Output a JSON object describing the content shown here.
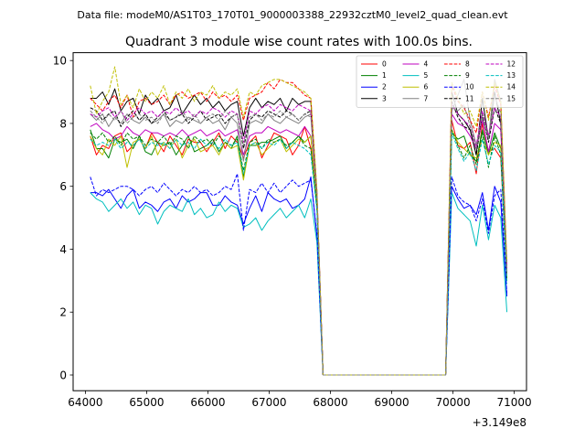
{
  "chart_data": {
    "type": "line",
    "suptitle": "Data file: modeM0/AS1T03_170T01_9000003388_22932cztM0_level2_quad_clean.evt",
    "title": "Quadrant 3 module wise count rates with 100.0s bins.",
    "xlabel": "",
    "ylabel": "",
    "x_offset_label": "+3.149e8",
    "xlim": [
      63800,
      71200
    ],
    "ylim": [
      -0.5,
      10.25
    ],
    "xticks": [
      64000,
      65000,
      66000,
      67000,
      68000,
      69000,
      70000,
      71000
    ],
    "xtick_labels": [
      "64000",
      "65000",
      "66000",
      "67000",
      "68000",
      "69000",
      "70000",
      "71000"
    ],
    "yticks": [
      0,
      2,
      4,
      6,
      8,
      10
    ],
    "ytick_labels": [
      "0",
      "2",
      "4",
      "6",
      "8",
      "10"
    ],
    "grid": false,
    "legend_position": "top-right",
    "legend_columns": 4,
    "x": [
      64080,
      64180,
      64280,
      64380,
      64480,
      64580,
      64680,
      64780,
      64880,
      64980,
      65080,
      65180,
      65280,
      65380,
      65480,
      65580,
      65680,
      65780,
      65880,
      65980,
      66080,
      66180,
      66280,
      66380,
      66480,
      66580,
      66680,
      66780,
      66880,
      66980,
      67080,
      67180,
      67280,
      67380,
      67480,
      67580,
      67680,
      67780,
      67880,
      67980,
      68080,
      68180,
      68280,
      68380,
      68480,
      68580,
      68680,
      68780,
      68880,
      68980,
      69080,
      69180,
      69280,
      69380,
      69480,
      69580,
      69680,
      69780,
      69880,
      69980,
      70080,
      70180,
      70280,
      70380,
      70480,
      70580,
      70680,
      70780,
      70880
    ],
    "series": [
      {
        "name": "0",
        "color": "#ff0000",
        "dash": "solid",
        "values": [
          7.6,
          7.0,
          7.3,
          7.2,
          7.6,
          7.7,
          7.1,
          7.3,
          7.5,
          7.2,
          7.7,
          7.4,
          7.1,
          7.6,
          7.3,
          7.0,
          7.5,
          7.4,
          7.4,
          7.1,
          7.4,
          7.7,
          7.2,
          7.6,
          7.4,
          6.9,
          7.4,
          7.6,
          6.9,
          7.3,
          7.7,
          7.6,
          7.5,
          7.0,
          7.3,
          7.9,
          7.2,
          5.5,
          0,
          0,
          0,
          0,
          0,
          0,
          0,
          0,
          0,
          0,
          0,
          0,
          0,
          0,
          0,
          0,
          0,
          0,
          0,
          0,
          0,
          8.1,
          7.3,
          7.2,
          7.4,
          6.4,
          8.0,
          7.1,
          7.2,
          6.9,
          3.0
        ]
      },
      {
        "name": "1",
        "color": "#008000",
        "dash": "solid",
        "values": [
          7.8,
          7.2,
          7.2,
          6.9,
          7.5,
          7.4,
          7.5,
          7.2,
          7.6,
          7.1,
          7.0,
          7.4,
          7.3,
          7.4,
          7.0,
          7.3,
          7.6,
          7.1,
          7.2,
          7.3,
          7.5,
          7.1,
          7.4,
          7.2,
          7.6,
          6.3,
          7.3,
          7.3,
          7.4,
          7.4,
          7.5,
          7.6,
          7.2,
          7.4,
          7.6,
          7.4,
          7.6,
          5.4,
          0,
          0,
          0,
          0,
          0,
          0,
          0,
          0,
          0,
          0,
          0,
          0,
          0,
          0,
          0,
          0,
          0,
          0,
          0,
          0,
          0,
          7.7,
          7.5,
          7.6,
          7.0,
          6.8,
          7.8,
          7.0,
          7.7,
          7.2,
          3.1
        ]
      },
      {
        "name": "2",
        "color": "#0000ff",
        "dash": "solid",
        "values": [
          5.8,
          5.8,
          5.7,
          5.9,
          5.6,
          5.3,
          5.7,
          5.9,
          5.3,
          5.5,
          5.4,
          5.2,
          5.5,
          5.6,
          5.3,
          5.7,
          5.5,
          5.6,
          5.8,
          5.8,
          5.4,
          5.4,
          5.7,
          5.5,
          5.4,
          4.8,
          5.3,
          5.7,
          5.2,
          5.8,
          5.6,
          5.5,
          5.6,
          5.3,
          5.4,
          5.6,
          6.3,
          4.4,
          0,
          0,
          0,
          0,
          0,
          0,
          0,
          0,
          0,
          0,
          0,
          0,
          0,
          0,
          0,
          0,
          0,
          0,
          0,
          0,
          0,
          6.0,
          5.6,
          5.3,
          5.4,
          5.1,
          5.8,
          4.6,
          6.0,
          5.5,
          2.5
        ]
      },
      {
        "name": "3",
        "color": "#000000",
        "dash": "solid",
        "values": [
          8.8,
          8.8,
          9.0,
          8.6,
          9.1,
          8.4,
          8.7,
          8.8,
          8.3,
          8.9,
          8.6,
          8.8,
          8.4,
          8.5,
          8.9,
          8.3,
          8.6,
          8.9,
          8.6,
          8.8,
          8.5,
          8.7,
          8.4,
          8.6,
          8.7,
          7.6,
          8.5,
          8.8,
          8.5,
          8.7,
          8.6,
          8.8,
          8.4,
          8.8,
          8.6,
          8.7,
          8.7,
          5.7,
          0,
          0,
          0,
          0,
          0,
          0,
          0,
          0,
          0,
          0,
          0,
          0,
          0,
          0,
          0,
          0,
          0,
          0,
          0,
          0,
          0,
          9.0,
          8.3,
          8.1,
          7.8,
          7.0,
          8.8,
          7.5,
          9.0,
          8.0,
          3.4
        ]
      },
      {
        "name": "4",
        "color": "#bf00bf",
        "dash": "solid",
        "values": [
          7.9,
          8.0,
          7.8,
          7.7,
          7.5,
          7.6,
          7.9,
          7.7,
          7.6,
          7.8,
          7.7,
          7.7,
          7.6,
          7.7,
          7.6,
          7.8,
          7.6,
          7.7,
          7.8,
          7.6,
          7.7,
          7.8,
          7.6,
          7.7,
          7.8,
          7.0,
          7.6,
          7.7,
          7.7,
          7.9,
          7.8,
          7.7,
          7.8,
          7.7,
          7.6,
          7.9,
          7.6,
          5.6,
          0,
          0,
          0,
          0,
          0,
          0,
          0,
          0,
          0,
          0,
          0,
          0,
          0,
          0,
          0,
          0,
          0,
          0,
          0,
          0,
          0,
          8.3,
          8.0,
          7.9,
          7.6,
          7.2,
          8.1,
          7.1,
          8.0,
          7.8,
          3.2
        ]
      },
      {
        "name": "5",
        "color": "#00bfbf",
        "dash": "solid",
        "values": [
          5.8,
          5.6,
          5.5,
          5.2,
          5.4,
          5.6,
          5.3,
          5.5,
          5.1,
          5.4,
          5.3,
          4.8,
          5.2,
          5.4,
          5.3,
          5.2,
          5.6,
          5.1,
          5.3,
          5.0,
          5.1,
          5.5,
          5.2,
          5.4,
          5.3,
          4.7,
          4.8,
          5.0,
          4.6,
          4.9,
          5.1,
          5.3,
          5.0,
          5.2,
          5.4,
          5.0,
          5.6,
          4.2,
          0,
          0,
          0,
          0,
          0,
          0,
          0,
          0,
          0,
          0,
          0,
          0,
          0,
          0,
          0,
          0,
          0,
          0,
          0,
          0,
          0,
          5.8,
          5.3,
          5.1,
          4.9,
          4.1,
          5.4,
          4.3,
          5.4,
          5.0,
          2.0
        ]
      },
      {
        "name": "6",
        "color": "#bfbf00",
        "dash": "solid",
        "values": [
          7.6,
          7.2,
          7.0,
          7.5,
          7.3,
          7.6,
          6.6,
          7.4,
          7.5,
          7.2,
          7.6,
          7.0,
          7.4,
          7.2,
          7.5,
          6.9,
          7.3,
          7.5,
          7.1,
          7.2,
          7.3,
          7.0,
          7.4,
          7.2,
          7.3,
          6.2,
          7.3,
          7.4,
          7.0,
          7.2,
          7.4,
          7.5,
          7.1,
          7.3,
          7.5,
          7.4,
          7.6,
          5.3,
          0,
          0,
          0,
          0,
          0,
          0,
          0,
          0,
          0,
          0,
          0,
          0,
          0,
          0,
          0,
          0,
          0,
          0,
          0,
          0,
          0,
          7.8,
          7.4,
          7.2,
          7.0,
          6.9,
          7.5,
          7.0,
          7.4,
          7.3,
          3.0
        ]
      },
      {
        "name": "7",
        "color": "#808080",
        "dash": "solid",
        "values": [
          8.3,
          8.1,
          8.3,
          7.9,
          8.2,
          8.0,
          8.3,
          8.1,
          8.0,
          8.2,
          8.0,
          8.1,
          8.3,
          7.9,
          8.1,
          8.0,
          8.2,
          8.1,
          8.0,
          8.2,
          8.0,
          8.1,
          7.8,
          8.2,
          8.0,
          6.8,
          8.0,
          8.1,
          8.0,
          8.3,
          8.1,
          8.0,
          8.2,
          8.1,
          8.0,
          8.2,
          8.3,
          5.6,
          0,
          0,
          0,
          0,
          0,
          0,
          0,
          0,
          0,
          0,
          0,
          0,
          0,
          0,
          0,
          0,
          0,
          0,
          0,
          0,
          0,
          8.4,
          8.9,
          9.4,
          8.1,
          7.3,
          8.2,
          7.5,
          9.4,
          8.7,
          3.3
        ]
      },
      {
        "name": "8",
        "color": "#ff0000",
        "dash": "dashed",
        "values": [
          8.8,
          8.6,
          8.4,
          8.7,
          8.9,
          8.5,
          8.9,
          8.2,
          8.7,
          8.8,
          8.6,
          8.7,
          8.9,
          8.6,
          8.9,
          9.0,
          8.8,
          8.9,
          9.0,
          8.7,
          9.0,
          8.8,
          8.9,
          8.7,
          8.9,
          8.1,
          8.8,
          8.9,
          9.0,
          9.3,
          9.1,
          9.4,
          9.3,
          9.3,
          9.1,
          8.9,
          8.8,
          5.8,
          0,
          0,
          0,
          0,
          0,
          0,
          0,
          0,
          0,
          0,
          0,
          0,
          0,
          0,
          0,
          0,
          0,
          0,
          0,
          0,
          0,
          9.2,
          8.7,
          8.5,
          8.1,
          7.7,
          9.0,
          8.2,
          9.2,
          8.6,
          3.5
        ]
      },
      {
        "name": "9",
        "color": "#008000",
        "dash": "dashed",
        "values": [
          7.7,
          7.5,
          7.7,
          7.4,
          7.6,
          7.3,
          7.7,
          7.5,
          7.6,
          7.3,
          7.5,
          7.4,
          7.6,
          7.3,
          7.6,
          7.5,
          7.2,
          7.6,
          7.4,
          7.5,
          7.3,
          7.6,
          7.4,
          7.3,
          7.5,
          6.5,
          7.4,
          7.5,
          7.2,
          7.5,
          7.4,
          7.5,
          7.3,
          7.4,
          7.6,
          7.3,
          7.2,
          5.3,
          0,
          0,
          0,
          0,
          0,
          0,
          0,
          0,
          0,
          0,
          0,
          0,
          0,
          0,
          0,
          0,
          0,
          0,
          0,
          0,
          0,
          7.8,
          7.3,
          6.9,
          7.3,
          6.7,
          7.7,
          6.6,
          7.6,
          7.0,
          3.0
        ]
      },
      {
        "name": "10",
        "color": "#0000ff",
        "dash": "dashed",
        "values": [
          6.3,
          5.7,
          5.9,
          5.8,
          5.9,
          6.0,
          6.0,
          5.9,
          5.7,
          5.9,
          6.0,
          5.8,
          6.1,
          5.9,
          5.7,
          5.9,
          5.8,
          6.0,
          5.8,
          5.9,
          5.7,
          5.8,
          6.0,
          5.9,
          6.4,
          4.6,
          5.9,
          5.8,
          6.1,
          5.8,
          6.1,
          5.8,
          6.0,
          6.2,
          6.0,
          6.1,
          6.2,
          4.5,
          0,
          0,
          0,
          0,
          0,
          0,
          0,
          0,
          0,
          0,
          0,
          0,
          0,
          0,
          0,
          0,
          0,
          0,
          0,
          0,
          0,
          6.3,
          5.7,
          5.5,
          5.4,
          4.9,
          5.6,
          4.5,
          5.7,
          5.9,
          2.6
        ]
      },
      {
        "name": "11",
        "color": "#000000",
        "dash": "dashed",
        "values": [
          8.5,
          8.4,
          8.1,
          8.3,
          8.4,
          7.9,
          8.2,
          8.4,
          8.1,
          8.3,
          8.0,
          8.2,
          8.4,
          8.1,
          8.2,
          8.3,
          8.0,
          8.2,
          8.4,
          8.1,
          8.2,
          8.3,
          8.0,
          8.2,
          8.3,
          7.2,
          8.1,
          8.3,
          8.2,
          8.4,
          8.3,
          8.2,
          8.4,
          8.3,
          8.1,
          8.3,
          8.4,
          5.7,
          0,
          0,
          0,
          0,
          0,
          0,
          0,
          0,
          0,
          0,
          0,
          0,
          0,
          0,
          0,
          0,
          0,
          0,
          0,
          0,
          0,
          8.7,
          8.2,
          7.9,
          7.8,
          7.0,
          8.3,
          7.4,
          8.5,
          8.0,
          3.3
        ]
      },
      {
        "name": "12",
        "color": "#bf00bf",
        "dash": "dashed",
        "values": [
          8.3,
          8.2,
          8.4,
          8.5,
          8.2,
          8.4,
          8.1,
          8.3,
          8.5,
          8.3,
          8.4,
          8.2,
          8.4,
          8.3,
          8.5,
          8.3,
          8.4,
          8.2,
          8.4,
          8.3,
          8.5,
          8.4,
          8.2,
          8.4,
          8.3,
          7.4,
          8.4,
          8.3,
          8.5,
          8.6,
          8.4,
          8.6,
          8.5,
          8.4,
          8.6,
          8.5,
          8.4,
          5.8,
          0,
          0,
          0,
          0,
          0,
          0,
          0,
          0,
          0,
          0,
          0,
          0,
          0,
          0,
          0,
          0,
          0,
          0,
          0,
          0,
          0,
          8.6,
          8.3,
          8.1,
          7.9,
          7.3,
          8.4,
          7.6,
          8.5,
          8.2,
          3.4
        ]
      },
      {
        "name": "13",
        "color": "#00bfbf",
        "dash": "dashed",
        "values": [
          7.5,
          7.3,
          7.4,
          7.3,
          7.5,
          7.2,
          7.4,
          7.3,
          7.5,
          7.2,
          7.4,
          7.3,
          7.4,
          7.2,
          7.5,
          7.3,
          7.4,
          7.2,
          7.5,
          7.3,
          7.4,
          7.2,
          7.5,
          7.3,
          7.4,
          6.4,
          7.3,
          7.4,
          7.2,
          7.4,
          7.3,
          7.5,
          7.2,
          7.4,
          7.3,
          7.2,
          7.0,
          5.2,
          0,
          0,
          0,
          0,
          0,
          0,
          0,
          0,
          0,
          0,
          0,
          0,
          0,
          0,
          0,
          0,
          0,
          0,
          0,
          0,
          0,
          7.7,
          7.2,
          6.8,
          7.1,
          6.5,
          7.5,
          6.7,
          7.3,
          7.1,
          2.9
        ]
      },
      {
        "name": "14",
        "color": "#bfbf00",
        "dash": "dashed",
        "values": [
          9.2,
          8.3,
          8.7,
          9.0,
          9.8,
          8.6,
          8.9,
          8.5,
          9.1,
          8.7,
          9.0,
          8.8,
          9.2,
          8.6,
          9.0,
          8.8,
          9.1,
          8.7,
          9.0,
          8.9,
          9.2,
          8.8,
          9.0,
          8.9,
          9.1,
          8.2,
          9.0,
          8.9,
          9.2,
          9.3,
          9.4,
          9.4,
          9.3,
          9.2,
          9.1,
          9.0,
          8.8,
          5.9,
          0,
          0,
          0,
          0,
          0,
          0,
          0,
          0,
          0,
          0,
          0,
          0,
          0,
          0,
          0,
          0,
          0,
          0,
          0,
          0,
          0,
          9.3,
          8.8,
          8.3,
          8.4,
          7.9,
          9.0,
          8.1,
          9.3,
          8.7,
          3.6
        ]
      },
      {
        "name": "15",
        "color": "#808080",
        "dash": "dashed",
        "values": [
          8.4,
          8.2,
          8.0,
          8.3,
          8.1,
          8.4,
          8.0,
          8.2,
          8.3,
          8.1,
          8.2,
          8.0,
          8.3,
          8.1,
          8.2,
          8.4,
          8.1,
          8.3,
          8.0,
          8.2,
          8.3,
          8.1,
          8.4,
          8.2,
          8.3,
          7.3,
          8.2,
          8.3,
          8.1,
          8.3,
          8.2,
          8.4,
          8.2,
          8.3,
          8.1,
          8.3,
          8.2,
          5.7,
          0,
          0,
          0,
          0,
          0,
          0,
          0,
          0,
          0,
          0,
          0,
          0,
          0,
          0,
          0,
          0,
          0,
          0,
          0,
          0,
          0,
          8.5,
          8.4,
          8.6,
          7.9,
          7.2,
          8.3,
          7.5,
          8.9,
          8.3,
          3.3
        ]
      }
    ]
  }
}
